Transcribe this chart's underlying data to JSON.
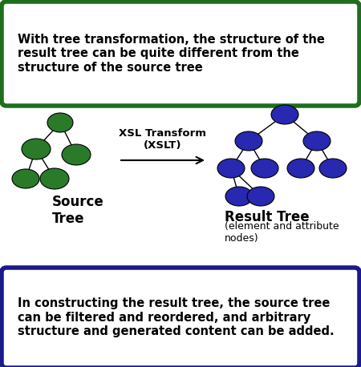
{
  "top_box_text": "With tree transformation, the structure of the\nresult tree can be quite different from the\nstructure of the source tree",
  "bottom_box_text": "In constructing the result tree, the source tree\ncan be filtered and reordered, and arbitrary\nstructure and generated content can be added.",
  "top_box_border_color": "#1e6e1e",
  "bottom_box_border_color": "#1a1a8c",
  "top_box_bg": "#ffffff",
  "bottom_box_bg": "#ffffff",
  "source_tree_color": "#2a7a2a",
  "result_tree_color": "#2828b0",
  "source_label": "Source\nTree",
  "result_label": "Result Tree",
  "result_sublabel": "(element and attribute\nnodes)",
  "arrow_label": "XSL Transform\n(XSLT)",
  "bg_color": "#ffffff"
}
